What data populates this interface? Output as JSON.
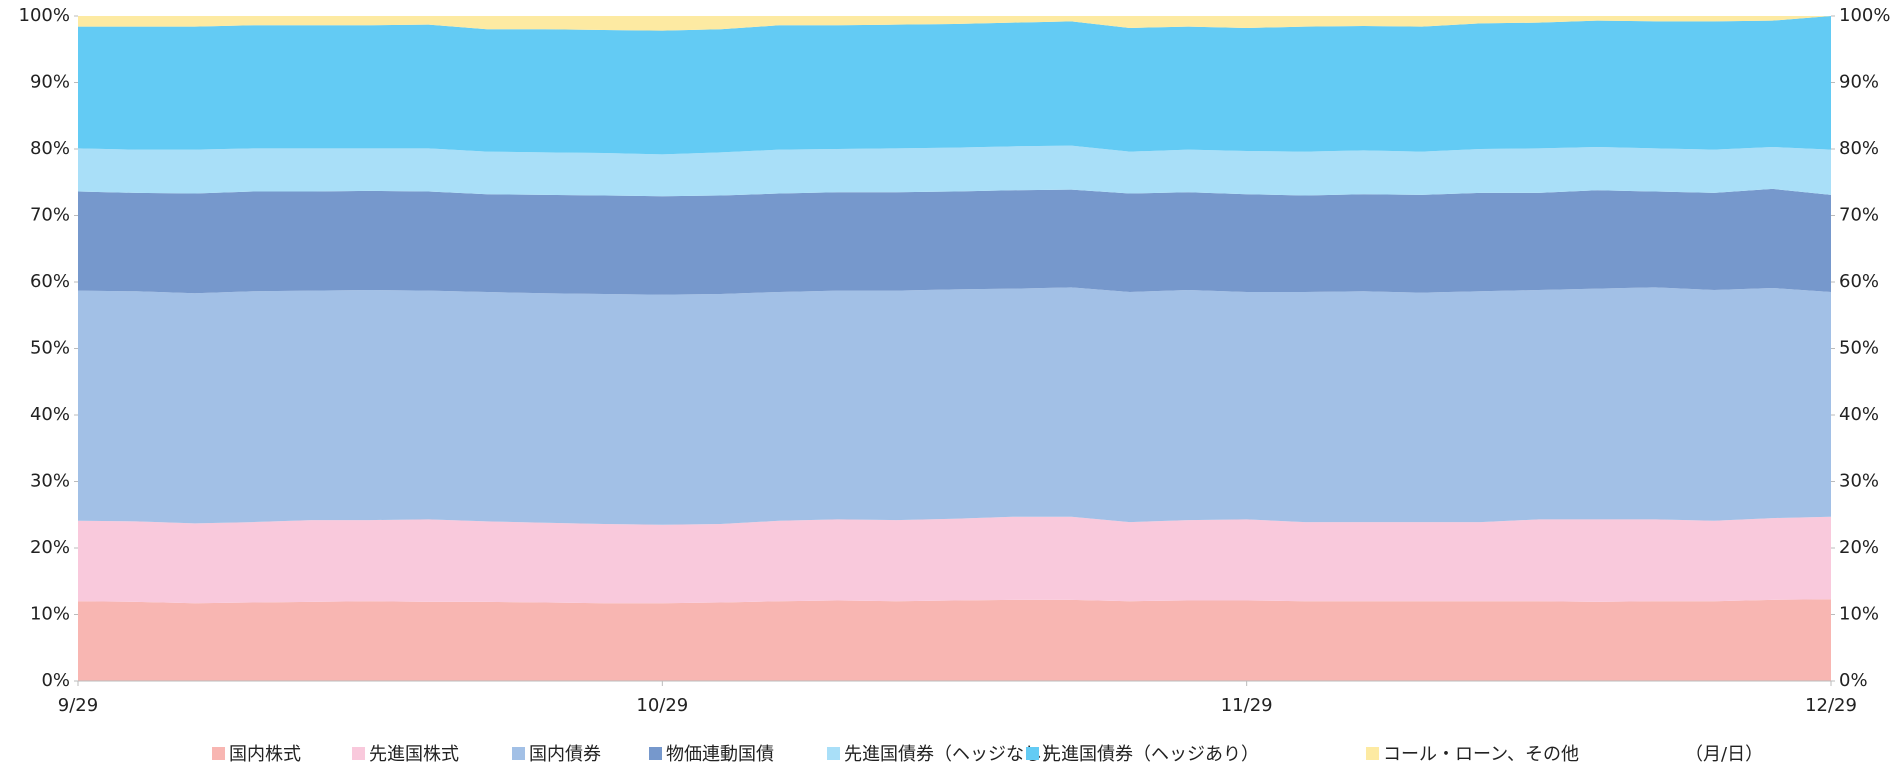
{
  "chart_data": {
    "type": "stacked_area",
    "x_label": "（月/日）",
    "categories": [
      "9/29",
      null,
      null,
      null,
      null,
      null,
      null,
      null,
      null,
      null,
      "10/29",
      null,
      null,
      null,
      null,
      null,
      null,
      null,
      null,
      null,
      "11/29",
      null,
      null,
      null,
      null,
      null,
      null,
      null,
      null,
      null,
      "12/29"
    ],
    "series": [
      {
        "name": "国内株式",
        "color": "#f8b6b2",
        "values": [
          12.0,
          11.9,
          11.7,
          11.8,
          11.9,
          12.0,
          11.9,
          11.9,
          11.8,
          11.7,
          11.7,
          11.8,
          12.0,
          12.1,
          12.0,
          12.1,
          12.2,
          12.2,
          12.0,
          12.1,
          12.1,
          12.0,
          12.0,
          12.0,
          12.0,
          12.0,
          11.9,
          12.0,
          12.0,
          12.2,
          12.3
        ]
      },
      {
        "name": "先進国株式",
        "color": "#f9c9dc",
        "values": [
          12.1,
          12.1,
          12.0,
          12.1,
          12.3,
          12.2,
          12.4,
          12.1,
          12.0,
          11.9,
          11.8,
          11.8,
          12.1,
          12.2,
          12.2,
          12.3,
          12.5,
          12.5,
          11.9,
          12.1,
          12.2,
          11.9,
          11.9,
          11.9,
          11.9,
          12.3,
          12.4,
          12.3,
          12.1,
          12.3,
          12.4
        ]
      },
      {
        "name": "国内債券",
        "color": "#a2c0e6",
        "values": [
          34.6,
          34.6,
          34.6,
          34.7,
          34.5,
          34.6,
          34.4,
          34.5,
          34.5,
          34.6,
          34.6,
          34.6,
          34.4,
          34.4,
          34.5,
          34.5,
          34.3,
          34.5,
          34.6,
          34.6,
          34.2,
          34.6,
          34.7,
          34.5,
          34.7,
          34.5,
          34.7,
          34.9,
          34.7,
          34.6,
          33.8
        ]
      },
      {
        "name": "物価連動国債",
        "color": "#7698cc",
        "values": [
          14.9,
          14.8,
          15.0,
          15.0,
          14.9,
          14.9,
          14.9,
          14.7,
          14.8,
          14.8,
          14.8,
          14.8,
          14.8,
          14.8,
          14.8,
          14.7,
          14.8,
          14.7,
          14.8,
          14.7,
          14.7,
          14.5,
          14.6,
          14.7,
          14.8,
          14.6,
          14.8,
          14.4,
          14.6,
          14.9,
          14.6
        ]
      },
      {
        "name": "先進国債券（ヘッジなし）",
        "color": "#a9dff8",
        "values": [
          6.5,
          6.5,
          6.6,
          6.5,
          6.5,
          6.4,
          6.5,
          6.4,
          6.4,
          6.4,
          6.3,
          6.5,
          6.6,
          6.5,
          6.6,
          6.6,
          6.6,
          6.6,
          6.3,
          6.4,
          6.5,
          6.6,
          6.6,
          6.5,
          6.6,
          6.7,
          6.5,
          6.5,
          6.5,
          6.3,
          6.8
        ]
      },
      {
        "name": "先進国債券（ヘッジあり）",
        "color": "#63cbf4",
        "values": [
          18.3,
          18.5,
          18.5,
          18.5,
          18.5,
          18.5,
          18.6,
          18.4,
          18.5,
          18.5,
          18.6,
          18.5,
          18.7,
          18.6,
          18.6,
          18.6,
          18.6,
          18.7,
          18.6,
          18.5,
          18.5,
          18.8,
          18.7,
          18.8,
          18.9,
          18.9,
          19.0,
          19.1,
          19.3,
          19.0,
          20.1
        ]
      },
      {
        "name": "コール・ローン、その他",
        "color": "#fdeaa2",
        "values": [
          1.6,
          1.6,
          1.6,
          1.4,
          1.4,
          1.4,
          1.3,
          2.0,
          2.0,
          2.1,
          2.2,
          2.0,
          1.4,
          1.4,
          1.3,
          1.2,
          1.0,
          0.8,
          1.8,
          1.6,
          1.8,
          1.6,
          1.5,
          1.6,
          1.1,
          1.0,
          0.7,
          0.8,
          0.8,
          0.7,
          0.0
        ]
      }
    ],
    "ylim": [
      0,
      100
    ],
    "yticks": [
      {
        "value": 0,
        "label": "0%"
      },
      {
        "value": 10,
        "label": "10%"
      },
      {
        "value": 20,
        "label": "20%"
      },
      {
        "value": 30,
        "label": "30%"
      },
      {
        "value": 40,
        "label": "40%"
      },
      {
        "value": 50,
        "label": "50%"
      },
      {
        "value": 60,
        "label": "60%"
      },
      {
        "value": 70,
        "label": "70%"
      },
      {
        "value": 80,
        "label": "80%"
      },
      {
        "value": 90,
        "label": "90%"
      },
      {
        "value": 100,
        "label": "100%"
      }
    ],
    "y2lim": [
      0,
      100
    ],
    "y2ticks": [
      {
        "value": 0,
        "label": "0%"
      },
      {
        "value": 10,
        "label": "10%"
      },
      {
        "value": 20,
        "label": "20%"
      },
      {
        "value": 30,
        "label": "30%"
      },
      {
        "value": 40,
        "label": "40%"
      },
      {
        "value": 50,
        "label": "50%"
      },
      {
        "value": 60,
        "label": "60%"
      },
      {
        "value": 70,
        "label": "70%"
      },
      {
        "value": 80,
        "label": "80%"
      },
      {
        "value": 90,
        "label": "90%"
      },
      {
        "value": 100,
        "label": "100%"
      }
    ],
    "legend": "bottom"
  }
}
